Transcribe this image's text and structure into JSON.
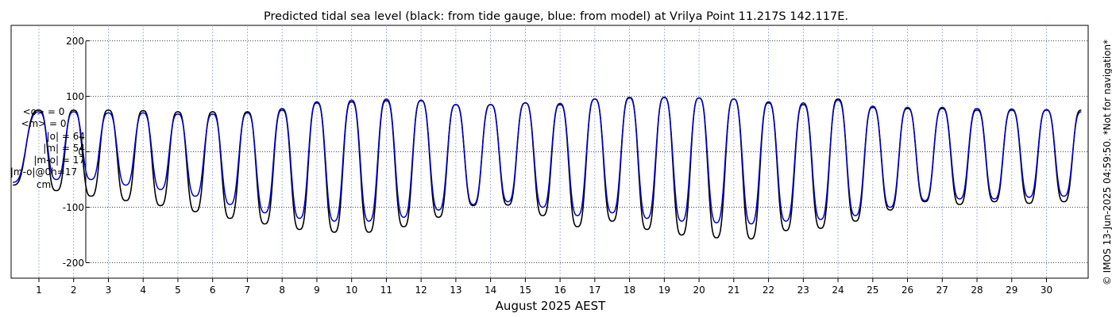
{
  "chart_data": {
    "type": "line",
    "title": "Predicted tidal sea level (black: from tide gauge, blue: from model) at Vrilya Point 11.217S 142.117E.",
    "xlabel": "August 2025 AEST",
    "ylabel": "",
    "ylim": [
      -200,
      200
    ],
    "yticks": [
      -200,
      -100,
      0,
      100,
      200
    ],
    "xticks": [
      1,
      2,
      3,
      4,
      5,
      6,
      7,
      8,
      9,
      10,
      11,
      12,
      13,
      14,
      15,
      16,
      17,
      18,
      19,
      20,
      21,
      22,
      23,
      24,
      25,
      26,
      27,
      28,
      29,
      30
    ],
    "xlim": [
      0.2,
      31.2
    ],
    "grid": true,
    "series": [
      {
        "color": "#000000",
        "x": [
          0.25,
          1.0,
          1.5,
          2.0,
          2.5,
          3.0,
          3.5,
          4.0,
          4.5,
          5.0,
          5.5,
          6.0,
          6.5,
          7.0,
          7.5,
          8.0,
          8.5,
          9.0,
          9.5,
          10.0,
          10.5,
          11.0,
          11.5,
          12.0,
          12.5,
          13.0,
          13.5,
          14.0,
          14.5,
          15.0,
          15.5,
          16.0,
          16.5,
          17.0,
          17.5,
          18.0,
          18.5,
          19.0,
          19.5,
          20.0,
          20.5,
          21.0,
          21.5,
          22.0,
          22.5,
          23.0,
          23.5,
          24.0,
          24.5,
          25.0,
          25.5,
          26.0,
          26.5,
          27.0,
          27.5,
          28.0,
          28.5,
          29.0,
          29.5,
          30.0,
          30.5,
          31.0
        ],
        "values": [
          -60,
          75,
          -70,
          75,
          -80,
          75,
          -88,
          74,
          -97,
          72,
          -108,
          72,
          -120,
          72,
          -130,
          75,
          -140,
          88,
          -145,
          90,
          -145,
          92,
          -135,
          92,
          -118,
          85,
          -97,
          85,
          -96,
          88,
          -115,
          85,
          -135,
          95,
          -125,
          98,
          -140,
          98,
          -150,
          97,
          -155,
          95,
          -157,
          88,
          -142,
          85,
          -138,
          95,
          -125,
          80,
          -105,
          78,
          -90,
          78,
          -95,
          75,
          -90,
          75,
          -93,
          75,
          -90,
          75
        ]
      },
      {
        "color": "#0000cc",
        "x": [
          0.25,
          1.0,
          1.5,
          2.0,
          2.5,
          3.0,
          3.5,
          4.0,
          4.5,
          5.0,
          5.5,
          6.0,
          6.5,
          7.0,
          7.5,
          8.0,
          8.5,
          9.0,
          9.5,
          10.0,
          10.5,
          11.0,
          11.5,
          12.0,
          12.5,
          13.0,
          13.5,
          14.0,
          14.5,
          15.0,
          15.5,
          16.0,
          16.5,
          17.0,
          17.5,
          18.0,
          18.5,
          19.0,
          19.5,
          20.0,
          20.5,
          21.0,
          21.5,
          22.0,
          22.5,
          23.0,
          23.5,
          24.0,
          24.5,
          25.0,
          25.5,
          26.0,
          26.5,
          27.0,
          27.5,
          28.0,
          28.5,
          29.0,
          29.5,
          30.0,
          30.5,
          31.0
        ],
        "values": [
          -55,
          72,
          -50,
          72,
          -50,
          70,
          -60,
          70,
          -68,
          68,
          -80,
          68,
          -95,
          70,
          -110,
          78,
          -120,
          90,
          -125,
          93,
          -125,
          95,
          -118,
          93,
          -105,
          85,
          -95,
          85,
          -90,
          88,
          -100,
          87,
          -115,
          95,
          -110,
          97,
          -120,
          98,
          -125,
          97,
          -128,
          95,
          -130,
          90,
          -125,
          88,
          -122,
          93,
          -115,
          82,
          -100,
          80,
          -88,
          80,
          -85,
          78,
          -85,
          77,
          -82,
          76,
          -80,
          72
        ]
      }
    ]
  },
  "stats": {
    "lines": [
      "<o> = 0",
      "<m> = 0",
      "|o| = 64",
      "|m| = 54",
      "|m-o| = 17",
      "|m-o|@0h=17",
      "cm"
    ]
  },
  "sidenote": "© IMOS 13-Jun-2025 04:59:50. *Not for navigation*"
}
